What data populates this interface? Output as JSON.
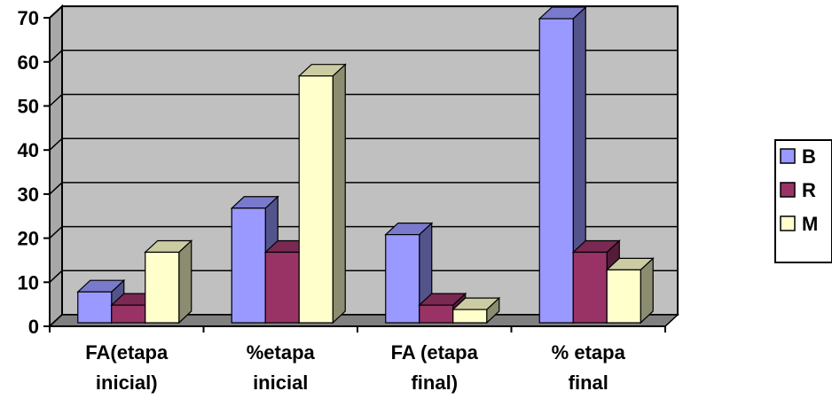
{
  "chart_data": {
    "type": "bar",
    "categories": [
      [
        "FA(etapa",
        "inicial)"
      ],
      [
        "%etapa",
        "inicial"
      ],
      [
        "FA (etapa",
        "final)"
      ],
      [
        "% etapa",
        "final"
      ]
    ],
    "series": [
      {
        "name": "B",
        "color": "#9999ff",
        "values": [
          7,
          26,
          20,
          69
        ]
      },
      {
        "name": "R",
        "color": "#993366",
        "values": [
          4,
          16,
          4,
          16
        ]
      },
      {
        "name": "M",
        "color": "#ffffcc",
        "values": [
          16,
          56,
          3,
          12
        ]
      }
    ],
    "y_ticks": [
      0,
      10,
      20,
      30,
      40,
      50,
      60,
      70
    ],
    "ylim": [
      0,
      70
    ],
    "grid": true,
    "legend_position": "right",
    "style": "3d-clustered-column",
    "title": "",
    "xlabel": "",
    "ylabel": ""
  }
}
